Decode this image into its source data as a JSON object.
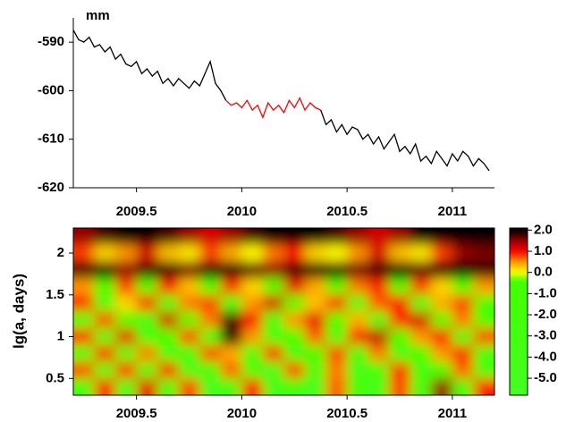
{
  "chart_data": [
    {
      "type": "line",
      "ylabel": "mm",
      "x": [
        2009.2,
        2009.225,
        2009.25,
        2009.275,
        2009.3,
        2009.325,
        2009.35,
        2009.375,
        2009.4,
        2009.425,
        2009.45,
        2009.475,
        2009.5,
        2009.525,
        2009.55,
        2009.575,
        2009.6,
        2009.625,
        2009.65,
        2009.675,
        2009.7,
        2009.725,
        2009.75,
        2009.775,
        2009.8,
        2009.825,
        2009.85,
        2009.875,
        2009.9,
        2009.925,
        2009.95,
        2009.975,
        2010.0,
        2010.025,
        2010.05,
        2010.075,
        2010.1,
        2010.125,
        2010.15,
        2010.175,
        2010.2,
        2010.225,
        2010.25,
        2010.275,
        2010.3,
        2010.325,
        2010.35,
        2010.375,
        2010.4,
        2010.425,
        2010.45,
        2010.475,
        2010.5,
        2010.525,
        2010.55,
        2010.575,
        2010.6,
        2010.625,
        2010.65,
        2010.675,
        2010.7,
        2010.725,
        2010.75,
        2010.775,
        2010.8,
        2010.825,
        2010.85,
        2010.875,
        2010.9,
        2010.925,
        2010.95,
        2010.975,
        2011.0,
        2011.025,
        2011.05,
        2011.075,
        2011.1,
        2011.125,
        2011.15,
        2011.175
      ],
      "series": [
        {
          "color": "#000000",
          "values": [
            -587.5,
            -589.5,
            -590.0,
            -589.0,
            -591.0,
            -590.5,
            -592.0,
            -591.0,
            -593.5,
            -592.5,
            -594.5,
            -595.0,
            -594.0,
            -596.5,
            -595.5,
            -597.0,
            -596.0,
            -598.5,
            -597.5,
            -599.0,
            -597.5,
            -598.5,
            -599.5,
            -598.0,
            -599.0,
            -596.5,
            -594.0,
            -598.5,
            -600.0,
            -602.0,
            null,
            null,
            null,
            null,
            null,
            null,
            null,
            null,
            null,
            null,
            null,
            null,
            null,
            null,
            null,
            null,
            null,
            -604.0,
            -607.0,
            -606.0,
            -608.5,
            -607.0,
            -609.0,
            -607.5,
            -608.0,
            -610.0,
            -609.0,
            -611.0,
            -609.5,
            -612.0,
            -610.5,
            -609.0,
            -612.5,
            -611.5,
            -613.0,
            -611.0,
            -614.5,
            -613.5,
            -615.0,
            -612.5,
            -614.0,
            -615.5,
            -613.0,
            -614.5,
            -612.5,
            -613.5,
            -615.5,
            -614.0,
            -615.0,
            -616.5
          ]
        },
        {
          "color": "#ff0000",
          "values": [
            null,
            null,
            null,
            null,
            null,
            null,
            null,
            null,
            null,
            null,
            null,
            null,
            null,
            null,
            null,
            null,
            null,
            null,
            null,
            null,
            null,
            null,
            null,
            null,
            null,
            null,
            null,
            null,
            null,
            -602.0,
            -603.0,
            -602.5,
            -603.5,
            -602.0,
            -604.0,
            -603.0,
            -605.5,
            -602.5,
            -604.0,
            -603.0,
            -604.5,
            -602.0,
            -603.5,
            -601.5,
            -604.0,
            -602.5,
            -603.5,
            -604.0,
            null,
            null,
            null,
            null,
            null,
            null,
            null,
            null,
            null,
            null,
            null,
            null,
            null,
            null,
            null,
            null,
            null,
            null,
            null,
            null,
            null,
            null,
            null,
            null,
            null,
            null,
            null,
            null,
            null,
            null,
            null,
            null
          ]
        }
      ],
      "xlim": [
        2009.2,
        2011.2
      ],
      "xticks": [
        2009.5,
        2010,
        2010.5,
        2011
      ],
      "ylim": [
        -620,
        -585
      ],
      "yticks": [
        -590,
        -600,
        -610,
        -620
      ]
    },
    {
      "type": "heatmap",
      "ylabel": "lg(a, days)",
      "x": [
        2009.25,
        2009.35,
        2009.45,
        2009.55,
        2009.65,
        2009.75,
        2009.85,
        2009.95,
        2010.05,
        2010.15,
        2010.25,
        2010.35,
        2010.45,
        2010.55,
        2010.65,
        2010.75,
        2010.85,
        2010.95,
        2011.05,
        2011.15
      ],
      "y": [
        2.2,
        2.0,
        1.8,
        1.6,
        1.4,
        1.2,
        1.0,
        0.8,
        0.6,
        0.4
      ],
      "z": [
        [
          1.5,
          1.8,
          2,
          2,
          1.8,
          1.5,
          1.2,
          1.5,
          1.8,
          2,
          2,
          2,
          1.8,
          1.5,
          1.2,
          1.5,
          2,
          2,
          2,
          2
        ],
        [
          0.8,
          0.2,
          0.5,
          1.2,
          0.3,
          0.1,
          0.8,
          0.4,
          0.0,
          0.6,
          1.0,
          0.2,
          0.0,
          0.5,
          1.2,
          0.3,
          0.1,
          0.8,
          1.5,
          1.6
        ],
        [
          1.8,
          2,
          1.5,
          1.8,
          2,
          1.6,
          1.9,
          2,
          1.7,
          1.5,
          1.8,
          2,
          1.9,
          1.6,
          1.8,
          2,
          1.7,
          1.9,
          2,
          1.8
        ],
        [
          0.5,
          -0.8,
          0.8,
          -1,
          1.0,
          0.3,
          -1.2,
          0.9,
          0.2,
          -0.9,
          1.1,
          0.4,
          -1,
          0.6,
          0.9,
          -0.7,
          0.8,
          0.2,
          -1,
          0.5
        ],
        [
          0.9,
          -2,
          0.2,
          1.0,
          -1.5,
          0.6,
          0.8,
          -2,
          0.5,
          1.2,
          -1,
          0.3,
          0.9,
          -2,
          0.7,
          1.0,
          -1.5,
          0.4,
          0.8,
          -1
        ],
        [
          -2,
          0.8,
          -1,
          -3,
          1.2,
          -0.5,
          0.6,
          1.8,
          1.0,
          -2,
          0.5,
          1.1,
          -1,
          0.4,
          -2,
          0.9,
          1.2,
          -0.5,
          0.6,
          -1
        ],
        [
          0.9,
          -2,
          1.1,
          -3,
          -1,
          0.8,
          -2,
          2,
          0.5,
          -2,
          -1,
          0.7,
          -3,
          0.9,
          1.3,
          -1,
          0.5,
          1.0,
          -2,
          0.8
        ],
        [
          -2,
          1.0,
          -3,
          0.6,
          -2,
          -3,
          0.8,
          0.4,
          -2,
          0.9,
          -3,
          -1,
          0.8,
          -2,
          0.6,
          -3,
          -1,
          0.5,
          0.9,
          -2
        ],
        [
          0.8,
          -3,
          0.9,
          -2,
          1.0,
          -4,
          -3,
          0.7,
          -2,
          -4,
          0.8,
          -3,
          0.6,
          -4,
          -2,
          0.9,
          -3,
          -1,
          0.7,
          -3
        ],
        [
          -3,
          0.9,
          -4,
          1.1,
          -3,
          0.8,
          -5,
          -3,
          1.0,
          -4,
          -3,
          -5,
          0.7,
          -3,
          -4,
          0.8,
          -2,
          1.5,
          -3,
          0.9
        ]
      ],
      "xlim": [
        2009.2,
        2011.2
      ],
      "xticks": [
        2009.5,
        2010,
        2010.5,
        2011
      ],
      "ylim": [
        0.3,
        2.3
      ],
      "yticks": [
        0.5,
        1,
        1.5,
        2
      ],
      "zlim": [
        -5.8,
        2.1
      ],
      "zticks": [
        {
          "value": 2,
          "label": "2.0"
        },
        {
          "value": 1,
          "label": "1.0"
        },
        {
          "value": 0,
          "label": "0.0"
        },
        {
          "value": -1,
          "label": "-1.0"
        },
        {
          "value": -2,
          "label": "-2.0"
        },
        {
          "value": -3,
          "label": "-3.0"
        },
        {
          "value": -4,
          "label": "-4.0"
        },
        {
          "value": -5,
          "label": "-5.0"
        }
      ]
    }
  ]
}
